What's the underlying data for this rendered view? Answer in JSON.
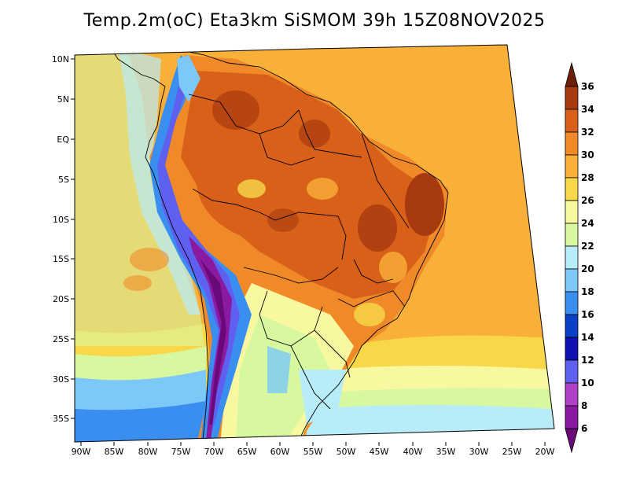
{
  "title": "Temp.2m(oC) Eta3km SiSMOM 39h 15Z08NOV2025",
  "lon_labels": [
    "90W",
    "85W",
    "80W",
    "75W",
    "70W",
    "65W",
    "60W",
    "55W",
    "50W",
    "45W",
    "40W",
    "35W",
    "30W",
    "25W",
    "20W"
  ],
  "lat_labels": [
    "10N",
    "5N",
    "EQ",
    "5S",
    "10S",
    "15S",
    "20S",
    "25S",
    "30S",
    "35S"
  ],
  "colorbar": {
    "labels": [
      "36",
      "34",
      "32",
      "30",
      "28",
      "26",
      "24",
      "22",
      "20",
      "18",
      "16",
      "14",
      "12",
      "10",
      "8",
      "6"
    ],
    "colors": {
      "lt6": "#6a0a7a",
      "6-8": "#8a1aa0",
      "8-10": "#b040c8",
      "10-12": "#6060f0",
      "12-14": "#1010b0",
      "14-16": "#0a40c8",
      "16-18": "#3a8ef0",
      "18-20": "#7cc8f8",
      "20-22": "#b8ecf8",
      "22-24": "#d8f8a0",
      "24-26": "#f8f8a0",
      "26-28": "#f8d848",
      "28-30": "#f8b038",
      "30-32": "#f08a28",
      "32-34": "#d86018",
      "34-36": "#a83a10",
      "gt36": "#6a2008"
    }
  }
}
